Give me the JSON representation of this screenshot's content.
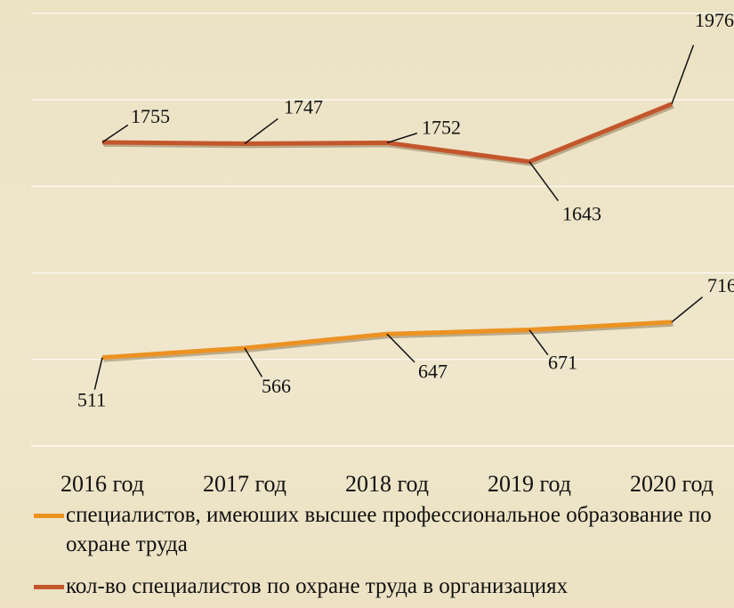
{
  "chart_data": {
    "type": "line",
    "categories": [
      "2016 год",
      "2017 год",
      "2018 год",
      "2019 год",
      "2020 год"
    ],
    "series": [
      {
        "name": "специалистов, имеюших высшее профессиональное образование по охране труда",
        "color": "#ec9222",
        "values": [
          511,
          566,
          647,
          671,
          716
        ]
      },
      {
        "name": "кол-во специалистов по охране труда в организациях",
        "color": "#c4562c",
        "values": [
          1755,
          1747,
          1752,
          1643,
          1976
        ]
      }
    ],
    "ylim": [
      0,
      2500
    ],
    "yticks": [
      0,
      500,
      1000,
      1500,
      2000,
      2500
    ],
    "grid": true,
    "legend": "bottom"
  }
}
